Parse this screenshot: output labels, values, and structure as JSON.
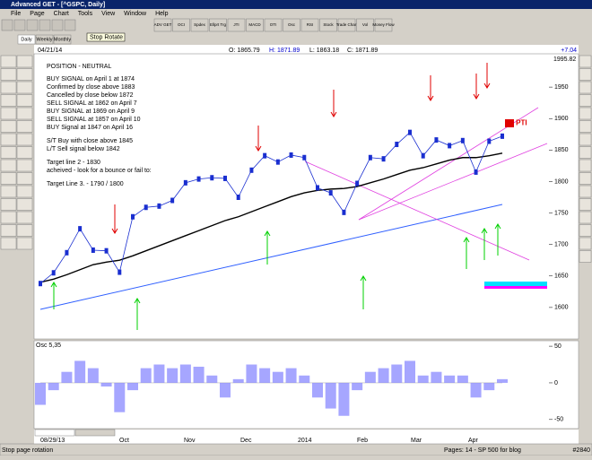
{
  "window": {
    "title": "Advanced GET - [^GSPC, Daily]"
  },
  "menu": [
    "File",
    "Page",
    "Chart",
    "Tools",
    "View",
    "Window",
    "Help"
  ],
  "toolbar": [
    "ADV GET",
    "OCI",
    "Spdex",
    "Ellprt Trg",
    "JTI",
    "MACD",
    "OTI",
    "Osc",
    "RSI",
    "Stock",
    "Trade Chan",
    "Vol",
    "Money Flow"
  ],
  "tabs": [
    "Daily",
    "Weekly",
    "Monthly"
  ],
  "tooltip": "Stop Rotate",
  "quote": {
    "date": "04/21/14",
    "open": "O: 1865.79",
    "high": "H: 1871.89",
    "low": "L: 1863.18",
    "close": "C: 1871.89",
    "change": "+7.04"
  },
  "notes": [
    "POSITION - NEUTRAL",
    "BUY SIGNAL on April 1 at 1874",
    "Confirmed by close above 1883",
    "Cancelled by close below 1872",
    "SELL SIGNAL at 1862 on April 7",
    "BUY SIGNAL at 1869 on April 9",
    "SELL SIGNAL at 1857 on April 10",
    "BUY Signal at 1847 on April 16",
    "S/T Buy with close above 1845",
    "L/T Sell signal below 1842",
    "Target line 2 - 1830",
    "acheived - look for a bounce or fail to:",
    "Target Line 3. - 1790 / 1800"
  ],
  "price_chart": {
    "top_label": "1995.82",
    "pti": "24 PTI",
    "ylim": [
      1550,
      2000
    ],
    "yticks": [
      1600,
      1650,
      1700,
      1750,
      1800,
      1850,
      1900,
      1950
    ],
    "closes": [
      1638,
      1655,
      1687,
      1725,
      1691,
      1690,
      1656,
      1744,
      1759,
      1761,
      1770,
      1798,
      1804,
      1806,
      1805,
      1775,
      1818,
      1841,
      1831,
      1842,
      1838,
      1790,
      1782,
      1751,
      1797,
      1838,
      1836,
      1859,
      1878,
      1841,
      1866,
      1857,
      1865,
      1815,
      1864,
      1872
    ],
    "ma": [
      1640,
      1645,
      1652,
      1660,
      1668,
      1672,
      1675,
      1682,
      1690,
      1698,
      1706,
      1714,
      1722,
      1730,
      1738,
      1744,
      1752,
      1760,
      1768,
      1776,
      1782,
      1786,
      1788,
      1789,
      1792,
      1798,
      1804,
      1811,
      1818,
      1822,
      1828,
      1834,
      1838,
      1838,
      1841,
      1845
    ]
  },
  "osc": {
    "tabs": [
      "Osc 5,35",
      "CCI 20"
    ],
    "ylim": [
      -60,
      55
    ],
    "yticks": [
      -50,
      0,
      50
    ],
    "values": [
      -30,
      -10,
      15,
      30,
      20,
      -5,
      -40,
      -10,
      20,
      25,
      20,
      25,
      22,
      10,
      -20,
      5,
      25,
      20,
      15,
      20,
      10,
      -20,
      -35,
      -45,
      -10,
      15,
      20,
      25,
      30,
      10,
      15,
      10,
      10,
      -20,
      -10,
      5
    ]
  },
  "x_labels": [
    "08/29/13",
    "Oct",
    "Nov",
    "Dec",
    "2014",
    "Feb",
    "Mar",
    "Apr"
  ],
  "status": {
    "left": "Stop page rotation",
    "center": "Pages: 14 - SP 500 for blog",
    "right": "#2840"
  }
}
